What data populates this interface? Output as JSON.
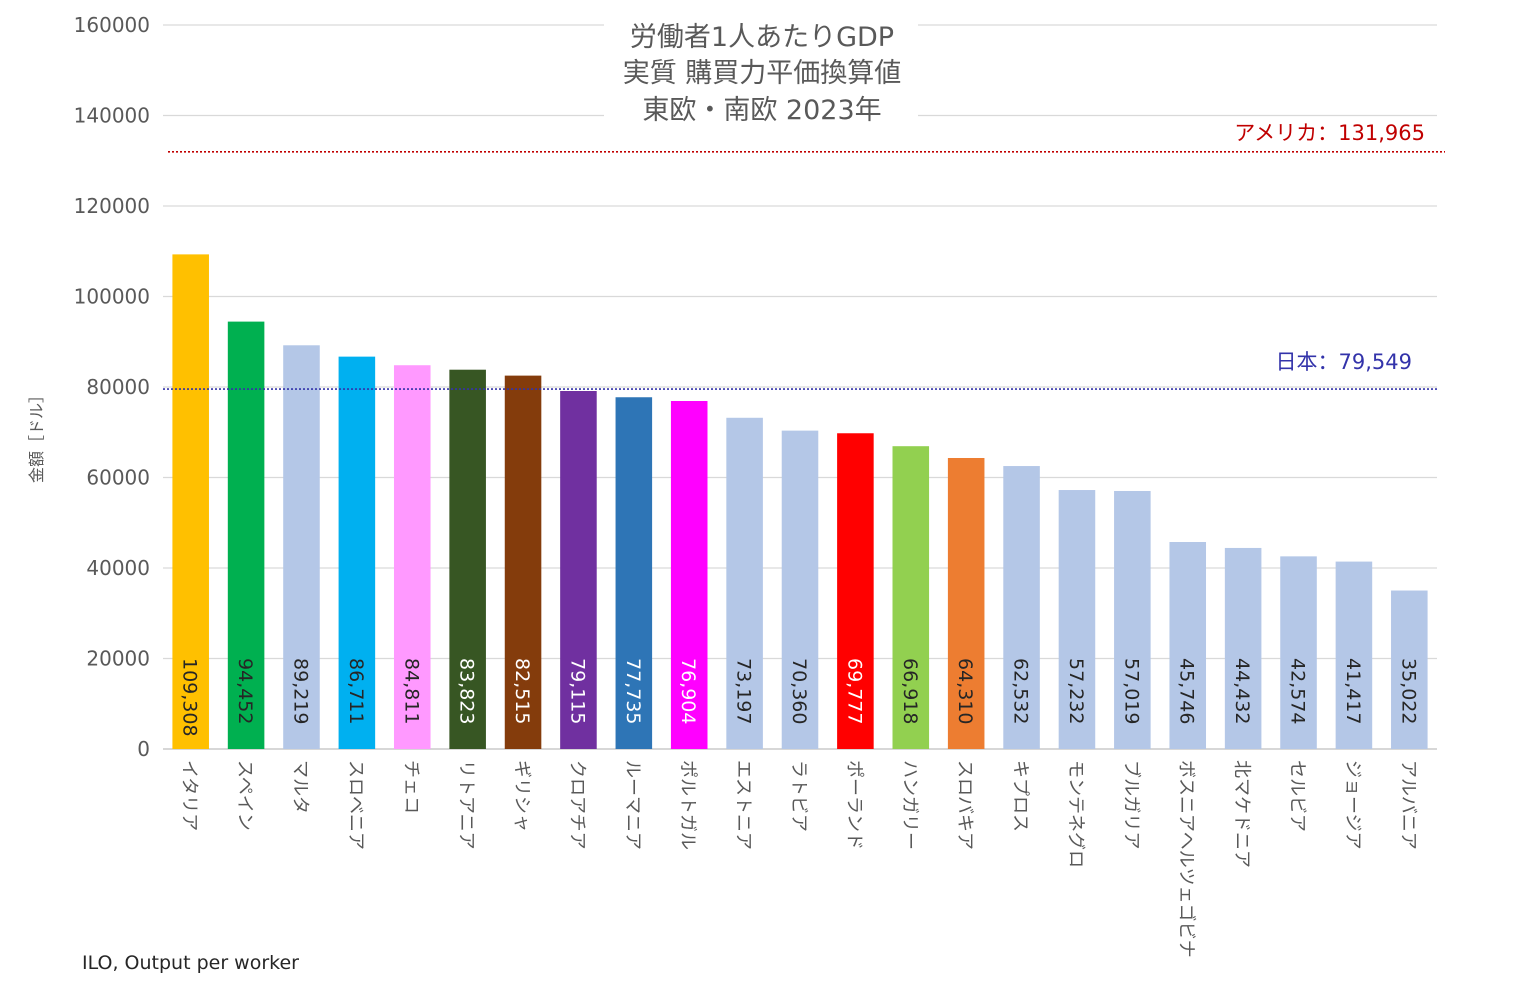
{
  "chart_data": {
    "type": "bar",
    "title": [
      "労働者1人あたりGDP",
      "実質 購買力平価換算値",
      "東欧・南欧 2023年"
    ],
    "xlabel": "",
    "ylabel": "金額［ドル］",
    "ylim": [
      0,
      160000
    ],
    "yticks": [
      "0",
      "20000",
      "40000",
      "60000",
      "80000",
      "100000",
      "120000",
      "140000",
      "160000"
    ],
    "grid": true,
    "categories": [
      "イタリア",
      "スペイン",
      "マルタ",
      "スロベニア",
      "チェコ",
      "リトアニア",
      "ギリシャ",
      "クロアチア",
      "ルーマニア",
      "ポルトガル",
      "エストニア",
      "ラトビア",
      "ポーランド",
      "ハンガリー",
      "スロバキア",
      "キプロス",
      "モンテネグロ",
      "ブルガリア",
      "ボスニアヘルツェゴビナ",
      "北マケドニア",
      "セルビア",
      "ジョージア",
      "アルバニア"
    ],
    "values": [
      109308,
      94452,
      89219,
      86711,
      84811,
      83823,
      82515,
      79115,
      77735,
      76904,
      73197,
      70360,
      69777,
      66918,
      64310,
      62532,
      57232,
      57019,
      45746,
      44432,
      42574,
      41417,
      35022
    ],
    "data_labels": [
      "109,308",
      "94,452",
      "89,219",
      "86,711",
      "84,811",
      "83,823",
      "82,515",
      "79,115",
      "77,735",
      "76,904",
      "73,197",
      "70,360",
      "69,777",
      "66,918",
      "64,310",
      "62,532",
      "57,232",
      "57,019",
      "45,746",
      "44,432",
      "42,574",
      "41,417",
      "35,022"
    ],
    "colors": [
      "#FFC000",
      "#00B050",
      "#B4C7E7",
      "#00B0F0",
      "#FF99FF",
      "#375623",
      "#843C0C",
      "#7030A0",
      "#2E75B6",
      "#FF00FF",
      "#B4C7E7",
      "#B4C7E7",
      "#FF0000",
      "#92D050",
      "#ED7D31",
      "#B4C7E7",
      "#B4C7E7",
      "#B4C7E7",
      "#B4C7E7",
      "#B4C7E7",
      "#B4C7E7",
      "#B4C7E7",
      "#B4C7E7"
    ],
    "label_colors": [
      "#262626",
      "#262626",
      "#262626",
      "#262626",
      "#262626",
      "#ffffff",
      "#ffffff",
      "#ffffff",
      "#ffffff",
      "#ffffff",
      "#262626",
      "#262626",
      "#ffffff",
      "#262626",
      "#262626",
      "#262626",
      "#262626",
      "#262626",
      "#262626",
      "#262626",
      "#262626",
      "#262626",
      "#262626"
    ],
    "reference_lines": [
      {
        "label": "アメリカ：131,965",
        "value": 131965,
        "color": "#C00000"
      },
      {
        "label": "日本：79,549",
        "value": 79549,
        "color": "#3333AA"
      }
    ]
  },
  "source": "ILO, Output per worker"
}
